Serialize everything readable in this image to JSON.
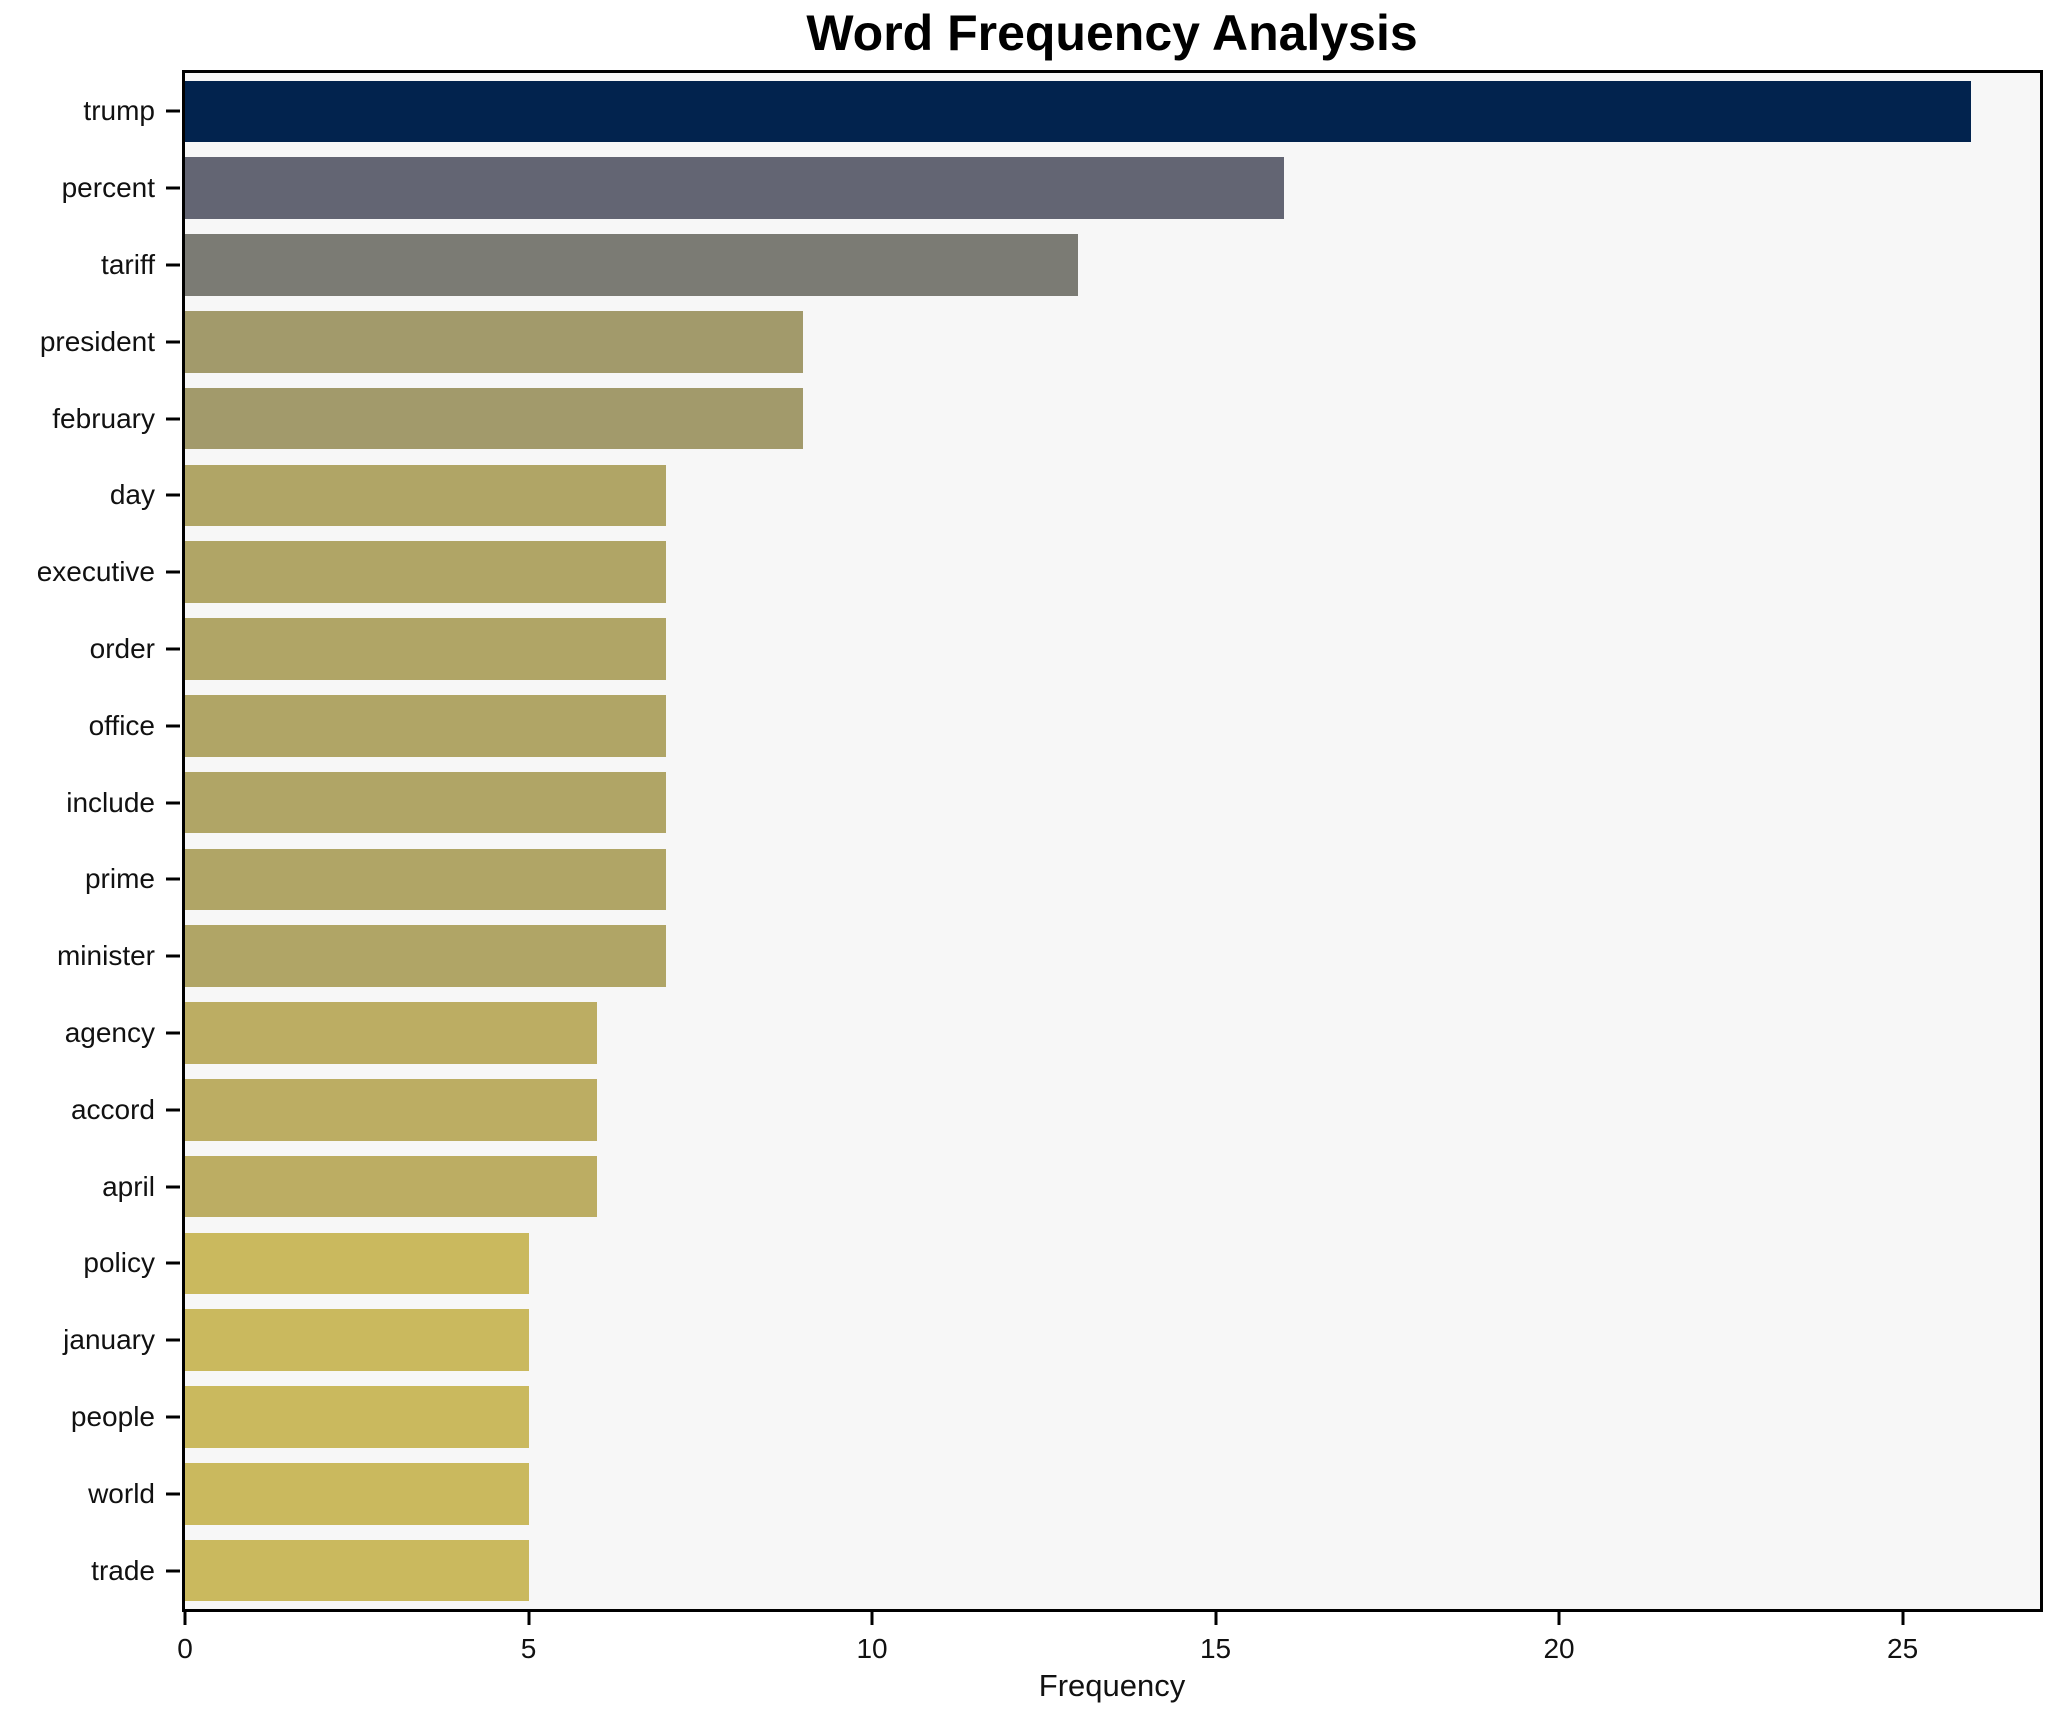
{
  "chart_data": {
    "type": "bar",
    "orientation": "horizontal",
    "title": "Word Frequency Analysis",
    "xlabel": "Frequency",
    "ylabel": "",
    "categories": [
      "trump",
      "percent",
      "tariff",
      "president",
      "february",
      "day",
      "executive",
      "order",
      "office",
      "include",
      "prime",
      "minister",
      "agency",
      "accord",
      "april",
      "policy",
      "january",
      "people",
      "world",
      "trade"
    ],
    "values": [
      26,
      16,
      13,
      9,
      9,
      7,
      7,
      7,
      7,
      7,
      7,
      7,
      6,
      6,
      6,
      5,
      5,
      5,
      5,
      5
    ],
    "bar_colors": [
      "#02234e",
      "#636573",
      "#7b7b74",
      "#a29a6b",
      "#a29a6b",
      "#b0a566",
      "#b0a566",
      "#b0a566",
      "#b0a566",
      "#b0a566",
      "#b0a566",
      "#b0a566",
      "#bcad63",
      "#bcad63",
      "#bcad63",
      "#cab95e",
      "#cab95e",
      "#cab95e",
      "#cab95e",
      "#cab95e"
    ],
    "xticks": [
      0,
      5,
      10,
      15,
      20,
      25
    ],
    "xlim": [
      0,
      27
    ],
    "grid": false,
    "legend": null,
    "plot_background": "#f7f7f7",
    "figure_background": "#ffffff",
    "spine_color": "#000000"
  }
}
